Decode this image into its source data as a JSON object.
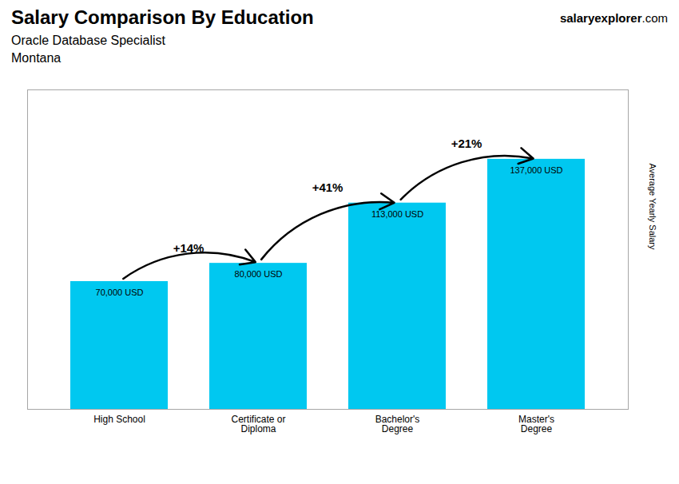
{
  "chart_data": {
    "type": "bar",
    "title": "Salary Comparison By Education",
    "subtitle": "Oracle Database Specialist",
    "location": "Montana",
    "watermark": [
      "salary",
      "explorer",
      ".com"
    ],
    "ylabel": "Average Yearly Salary",
    "categories": [
      "High School",
      "Certificate or\nDiploma",
      "Bachelor's\nDegree",
      "Master's\nDegree"
    ],
    "values": [
      70000,
      80000,
      113000,
      137000
    ],
    "value_labels": [
      "70,000 USD",
      "80,000 USD",
      "113,000 USD",
      "137,000 USD"
    ],
    "data_labels": true,
    "annotations": [
      "+14%",
      "+41%",
      "+21%"
    ],
    "color": "#00c8f0",
    "ylim": [
      0,
      175000
    ],
    "tick_labels": "x",
    "grid": false
  }
}
